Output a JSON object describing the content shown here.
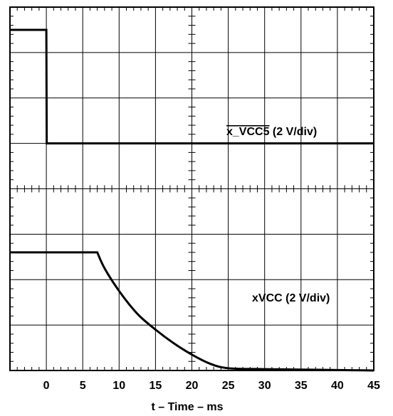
{
  "chart_data": {
    "type": "line",
    "xlabel": "t – Time – ms",
    "xlim": [
      -5,
      45
    ],
    "x_ticks": [
      0,
      5,
      10,
      15,
      20,
      25,
      30,
      35,
      40,
      45
    ],
    "grid": true,
    "x_divisions": 10,
    "y_divisions": 8,
    "series": [
      {
        "name": "x_VCC5",
        "overline": true,
        "label_suffix": " (2 V/div)",
        "panel": "top",
        "units": "divisions",
        "x": [
          -5,
          0,
          0.05,
          45
        ],
        "y": [
          3.5,
          3.5,
          1.0,
          1.0
        ]
      },
      {
        "name": "xVCC",
        "overline": false,
        "label_suffix": " (2 V/div)",
        "panel": "bottom",
        "units": "divisions",
        "x": [
          -5,
          7,
          8,
          10,
          12.5,
          15,
          17.5,
          20,
          22.5,
          25,
          30,
          35,
          40,
          45
        ],
        "y": [
          -1.4,
          -1.4,
          -1.75,
          -2.25,
          -2.75,
          -3.1,
          -3.4,
          -3.65,
          -3.85,
          -3.95,
          -3.97,
          -3.98,
          -3.99,
          -4.0
        ]
      }
    ]
  }
}
